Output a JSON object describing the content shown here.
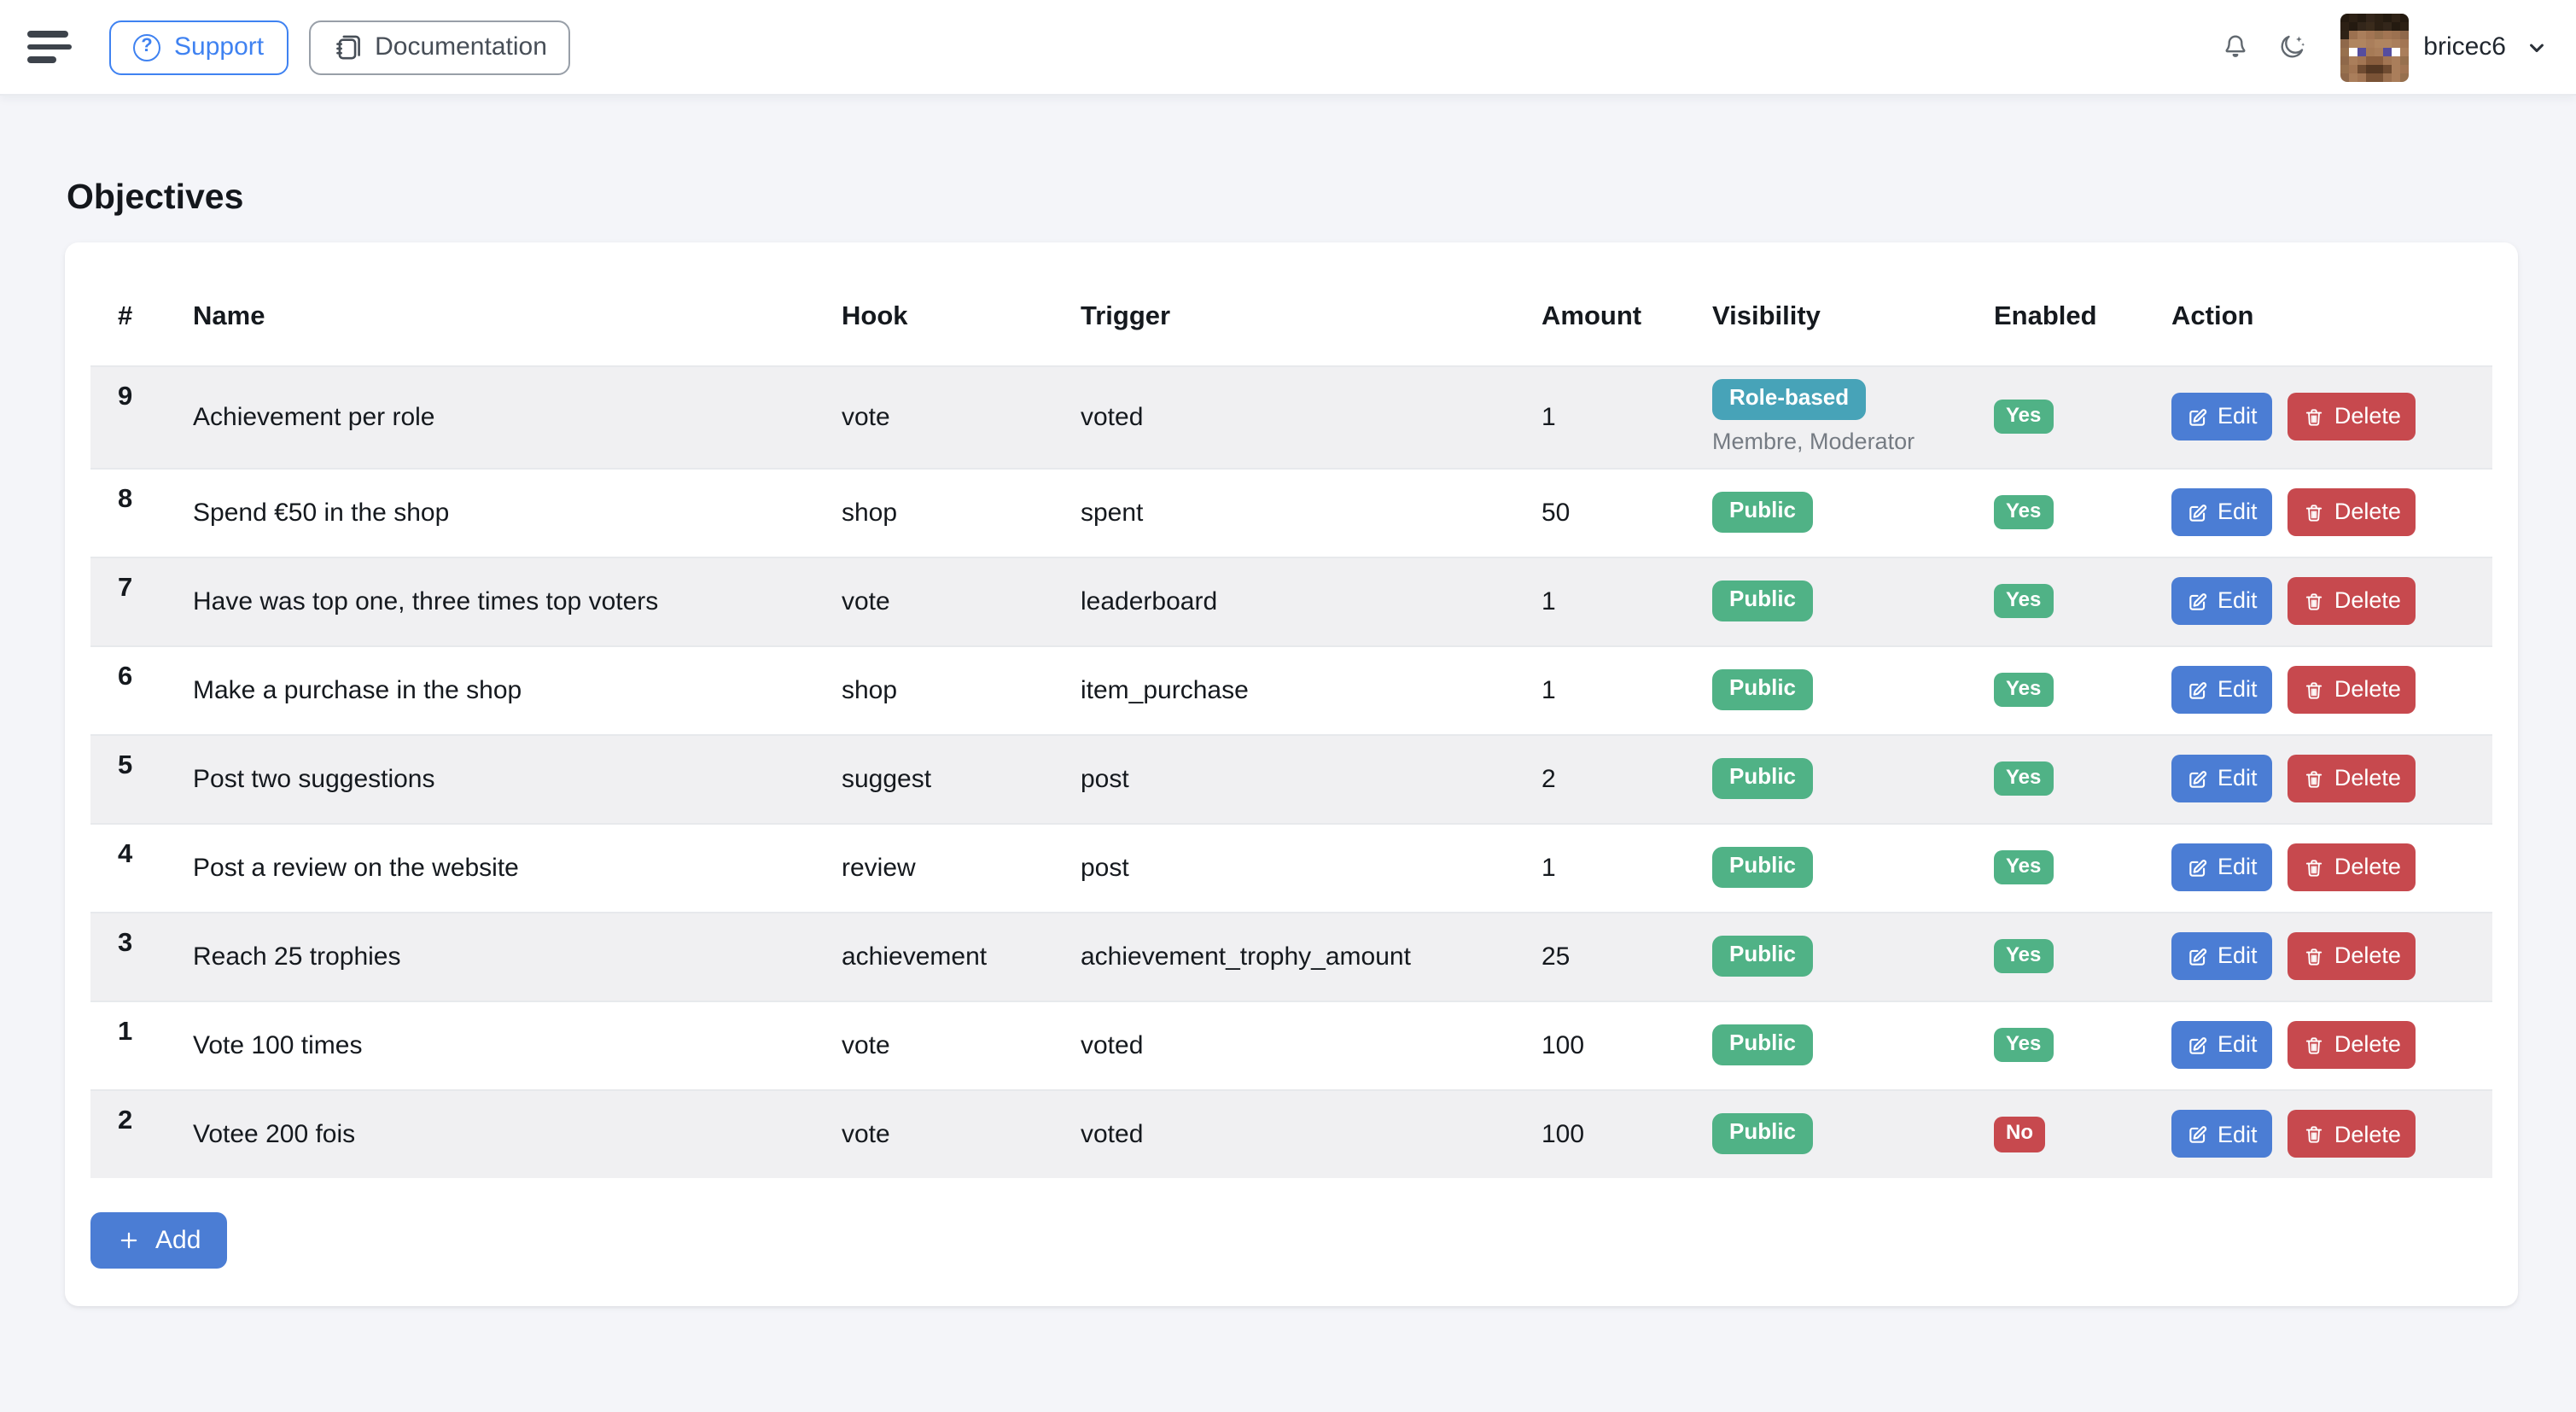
{
  "topbar": {
    "support_label": "Support",
    "documentation_label": "Documentation",
    "username": "bricec6",
    "icons": {
      "menu": "hamburger-icon",
      "support": "question-circle-icon",
      "documentation": "journals-icon",
      "notifications": "bell-icon",
      "dark_mode": "moon-stars-icon",
      "user_menu": "chevron-down-icon"
    }
  },
  "page": {
    "title": "Objectives",
    "add_label": "Add"
  },
  "table": {
    "columns": [
      "#",
      "Name",
      "Hook",
      "Trigger",
      "Amount",
      "Visibility",
      "Enabled",
      "Action"
    ],
    "edit_label": "Edit",
    "delete_label": "Delete",
    "rows": [
      {
        "index": "9",
        "name": "Achievement per role",
        "hook": "vote",
        "trigger": "voted",
        "amount": "1",
        "visibility": "Role-based",
        "visibility_detail": "Membre, Moderator",
        "enabled": "Yes"
      },
      {
        "index": "8",
        "name": "Spend €50 in the shop",
        "hook": "shop",
        "trigger": "spent",
        "amount": "50",
        "visibility": "Public",
        "enabled": "Yes"
      },
      {
        "index": "7",
        "name": "Have was top one, three times top voters",
        "hook": "vote",
        "trigger": "leaderboard",
        "amount": "1",
        "visibility": "Public",
        "enabled": "Yes"
      },
      {
        "index": "6",
        "name": "Make a purchase in the shop",
        "hook": "shop",
        "trigger": "item_purchase",
        "amount": "1",
        "visibility": "Public",
        "enabled": "Yes"
      },
      {
        "index": "5",
        "name": "Post two suggestions",
        "hook": "suggest",
        "trigger": "post",
        "amount": "2",
        "visibility": "Public",
        "enabled": "Yes"
      },
      {
        "index": "4",
        "name": "Post a review on the website",
        "hook": "review",
        "trigger": "post",
        "amount": "1",
        "visibility": "Public",
        "enabled": "Yes"
      },
      {
        "index": "3",
        "name": "Reach 25 trophies",
        "hook": "achievement",
        "trigger": "achievement_trophy_amount",
        "amount": "25",
        "visibility": "Public",
        "enabled": "Yes"
      },
      {
        "index": "1",
        "name": "Vote 100 times",
        "hook": "vote",
        "trigger": "voted",
        "amount": "100",
        "visibility": "Public",
        "enabled": "Yes"
      },
      {
        "index": "2",
        "name": "Votee 200 fois",
        "hook": "vote",
        "trigger": "voted",
        "amount": "100",
        "visibility": "Public",
        "enabled": "No"
      }
    ]
  },
  "colors": {
    "page-bg": "#f4f5f9",
    "accent-blue": "#4b7dd4",
    "support-blue": "#3f82f1",
    "green": "#50b286",
    "red": "#c7494e",
    "teal": "#47a3b8",
    "stripe": "#f0f0f2"
  },
  "avatar": {
    "description": "minecraft-steve-head",
    "pixels": [
      [
        "#241a10",
        "#2c2014",
        "#241a10",
        "#33251a",
        "#2c2014",
        "#241a10",
        "#2f2216",
        "#241a10"
      ],
      [
        "#2c2014",
        "#241a10",
        "#33261a",
        "#3a2b1c",
        "#2c2014",
        "#33261a",
        "#241a10",
        "#2c2014"
      ],
      [
        "#2f2216",
        "#9c7150",
        "#aa7e5b",
        "#a27553",
        "#97704e",
        "#a27553",
        "#9c7150",
        "#8f684a"
      ],
      [
        "#8f684a",
        "#b08560",
        "#b08560",
        "#aa7e5b",
        "#b08560",
        "#b08560",
        "#aa7e5b",
        "#a27553"
      ],
      [
        "#97704e",
        "#ffffff",
        "#564d9e",
        "#a67a56",
        "#aa7e5b",
        "#564d9e",
        "#ffffff",
        "#aa7e5b"
      ],
      [
        "#8f684a",
        "#aa7e5b",
        "#a27553",
        "#8a5e3e",
        "#8a5e3e",
        "#a27553",
        "#aa7e5b",
        "#97704e"
      ],
      [
        "#97704e",
        "#a27553",
        "#6f4b31",
        "#553823",
        "#553823",
        "#6f4b31",
        "#aa7e5b",
        "#a27553"
      ],
      [
        "#8f684a",
        "#aa7e5b",
        "#a27553",
        "#7a5336",
        "#7a5336",
        "#9c7150",
        "#aa7e5b",
        "#97704e"
      ]
    ]
  }
}
